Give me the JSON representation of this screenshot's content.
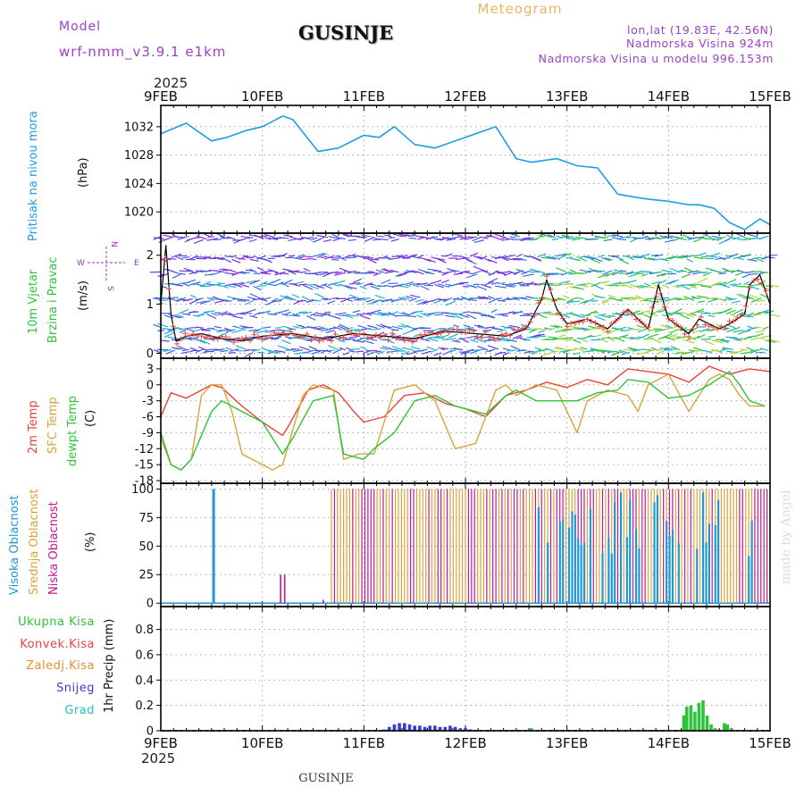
{
  "header": {
    "model_label": "Model",
    "model_name": "wrf-nmm_v3.9.1 e1km",
    "title": "GUSINJE",
    "meteogram": "Meteogram",
    "lonlat": "lon,lat (19.83E, 42.56N)",
    "elevation": "Nadmorska Visina 924m",
    "model_elevation": "Nadmorska Visina u modelu 996.153m",
    "year": "2025",
    "footer_title": "GUSINJE",
    "watermark": "made by Angel"
  },
  "colors": {
    "pressure": "#1f9de0",
    "temp2m": "#e8433a",
    "sfc": "#d9a33c",
    "dewpt": "#2dc43a",
    "high_cloud": "#2196d3",
    "mid_cloud": "#d9a33c",
    "low_cloud": "#c0188f",
    "total": "#2dc43a",
    "conv": "#e8433a",
    "frozen": "#f08a30",
    "snow": "#3a3ad8",
    "grad": "#20c0c0",
    "wind_label": "#2dc43a",
    "wind_dir_label": "#9c38c8",
    "header_purple": "#a040c8",
    "header_gold": "#e6b860"
  },
  "axis": {
    "days": [
      "9FEB",
      "10FEB",
      "11FEB",
      "12FEB",
      "13FEB",
      "14FEB",
      "15FEB"
    ]
  },
  "chart_data": [
    {
      "type": "line",
      "name": "pressure",
      "ylabel": "(hPa)",
      "side_labels": [
        "Pritisak na nivou mora"
      ],
      "ylim": [
        1017,
        1035
      ],
      "yticks": [
        1020,
        1024,
        1028,
        1032
      ],
      "grid": true,
      "series": [
        {
          "key": "pressure",
          "x": [
            0,
            0.25,
            0.35,
            0.5,
            0.65,
            0.85,
            1.0,
            1.2,
            1.3,
            1.55,
            1.75,
            2.0,
            2.15,
            2.3,
            2.5,
            2.7,
            2.9,
            3.1,
            3.3,
            3.5,
            3.65,
            3.9,
            4.1,
            4.3,
            4.5,
            4.7,
            4.8,
            5.0,
            5.2,
            5.3,
            5.45,
            5.6,
            5.75,
            5.9,
            6.0
          ],
          "y": [
            1031,
            1032.5,
            1031.5,
            1030,
            1030.5,
            1031.5,
            1032,
            1033.5,
            1033,
            1028.5,
            1029,
            1030.8,
            1030.5,
            1032,
            1029.5,
            1029,
            1030,
            1031,
            1032,
            1027.5,
            1027,
            1027.5,
            1026.5,
            1026.2,
            1022.5,
            1022,
            1021.8,
            1021.5,
            1021,
            1021,
            1020.5,
            1018.5,
            1017.5,
            1019,
            1018.2
          ]
        }
      ]
    },
    {
      "type": "line",
      "name": "wind",
      "ylabel": "(m/s)",
      "side_labels": [
        "10m Vjetar",
        "Brzina i Pravac"
      ],
      "compass": {
        "n": "N",
        "s": "S",
        "w": "W",
        "e": "E"
      },
      "ylim": [
        -0.1,
        2.45
      ],
      "yticks": [
        0,
        1,
        2
      ],
      "grid": true,
      "series": [
        {
          "key": "speed",
          "x": [
            0,
            0.05,
            0.1,
            0.15,
            0.25,
            0.4,
            0.6,
            0.8,
            1.0,
            1.3,
            1.6,
            1.9,
            2.2,
            2.5,
            2.8,
            3.1,
            3.4,
            3.6,
            3.75,
            3.8,
            3.9,
            4.0,
            4.2,
            4.4,
            4.6,
            4.8,
            4.9,
            5.0,
            5.2,
            5.3,
            5.4,
            5.5,
            5.6,
            5.75,
            5.8,
            5.9,
            6.0
          ],
          "y": [
            1.0,
            2.2,
            0.8,
            0.25,
            0.35,
            0.4,
            0.3,
            0.25,
            0.35,
            0.4,
            0.3,
            0.4,
            0.35,
            0.3,
            0.45,
            0.4,
            0.35,
            0.5,
            1.1,
            1.5,
            0.9,
            0.6,
            0.7,
            0.5,
            0.9,
            0.5,
            1.4,
            0.7,
            0.4,
            0.7,
            0.6,
            0.5,
            0.6,
            0.8,
            1.4,
            1.6,
            1.0
          ]
        }
      ]
    },
    {
      "type": "line",
      "name": "temperature",
      "ylabel": "(C)",
      "side_labels": [
        "2m Temp",
        "SFC Temp",
        "dewpt Temp"
      ],
      "ylim": [
        -18.5,
        5
      ],
      "yticks": [
        3,
        0,
        -3,
        -6,
        -9,
        -12,
        -15,
        -18
      ],
      "grid": true,
      "series": [
        {
          "key": "temp2m",
          "x": [
            0,
            0.1,
            0.25,
            0.4,
            0.5,
            0.6,
            0.8,
            1.0,
            1.2,
            1.25,
            1.45,
            1.6,
            1.75,
            1.9,
            2.0,
            2.2,
            2.4,
            2.6,
            2.8,
            3.0,
            3.2,
            3.4,
            3.6,
            3.8,
            4.0,
            4.2,
            4.4,
            4.6,
            4.8,
            5.0,
            5.2,
            5.4,
            5.6,
            5.8,
            6.0
          ],
          "y": [
            -6,
            -1.5,
            -2.5,
            -1,
            0,
            -0.5,
            -4,
            -7,
            -9.5,
            -8,
            -1,
            0,
            -1.5,
            -5,
            -7,
            -6,
            -2,
            -1.5,
            -3.5,
            -4.5,
            -6,
            -2,
            -1,
            0.5,
            -0.5,
            1,
            0,
            3,
            2.5,
            2,
            0.5,
            3.5,
            2,
            3,
            2.5
          ]
        },
        {
          "key": "sfc",
          "x": [
            0,
            0.1,
            0.2,
            0.3,
            0.4,
            0.5,
            0.6,
            0.7,
            0.8,
            1.0,
            1.1,
            1.2,
            1.4,
            1.5,
            1.7,
            1.8,
            1.95,
            2.1,
            2.3,
            2.5,
            2.7,
            2.9,
            3.1,
            3.2,
            3.3,
            3.4,
            3.5,
            3.7,
            3.9,
            4.1,
            4.2,
            4.4,
            4.6,
            4.7,
            4.8,
            5.0,
            5.2,
            5.4,
            5.5,
            5.6,
            5.7,
            5.8,
            5.95
          ],
          "y": [
            -10,
            -15,
            -16,
            -14,
            -2,
            0,
            0,
            -5,
            -13,
            -15,
            -16,
            -15,
            -2,
            0,
            -1,
            -14,
            -13,
            -13,
            -1,
            0,
            -3,
            -12,
            -11,
            -6,
            -1,
            0,
            -2,
            0,
            -1,
            -9,
            -3,
            -1,
            -2,
            -5,
            0,
            2,
            -5,
            1,
            2,
            1,
            -2,
            -4,
            -4
          ]
        },
        {
          "key": "dewpt",
          "x": [
            0,
            0.1,
            0.2,
            0.3,
            0.5,
            0.6,
            0.8,
            1.0,
            1.1,
            1.2,
            1.3,
            1.5,
            1.7,
            1.8,
            2.0,
            2.1,
            2.3,
            2.5,
            2.7,
            2.9,
            3.1,
            3.2,
            3.4,
            3.5,
            3.7,
            3.9,
            4.1,
            4.3,
            4.5,
            4.6,
            4.8,
            5.0,
            5.2,
            5.4,
            5.6,
            5.7,
            5.8,
            5.95
          ],
          "y": [
            -9,
            -15,
            -16,
            -14,
            -5,
            -3,
            -5,
            -7,
            -10,
            -13,
            -10,
            -3,
            -2,
            -13,
            -14,
            -12,
            -9,
            -3,
            -2,
            -4,
            -5,
            -5.5,
            -2,
            -1,
            -3,
            -3,
            -3,
            -1.5,
            -1,
            1,
            0.5,
            -2.5,
            -2,
            0,
            2.5,
            0,
            -3,
            -4
          ]
        }
      ]
    },
    {
      "type": "bar",
      "name": "cloud",
      "ylabel": "(%)",
      "side_labels": [
        "Visoka Oblacnost",
        "Srednja Oblacnost",
        "Niska Oblacnost"
      ],
      "ylim": [
        -3,
        105
      ],
      "yticks": [
        0,
        25,
        50,
        75,
        100
      ],
      "grid": true
    },
    {
      "type": "bar",
      "name": "precip",
      "ylabel": "1hr Precip (mm)",
      "side_labels": [
        "Ukupna Kisa",
        "Konvek.Kisa",
        "Zaledj.Kisa",
        "Snijeg",
        "Grad"
      ],
      "ylim": [
        0,
        0.98
      ],
      "yticks": [
        0,
        0.2,
        0.4,
        0.6,
        0.8
      ],
      "grid": true,
      "series": [
        {
          "key": "snow",
          "x": [
            2.2,
            2.25,
            2.3,
            2.35,
            2.4,
            2.45,
            2.5,
            2.55,
            2.6,
            2.65,
            2.7,
            2.75,
            2.8,
            2.85,
            2.9,
            2.95,
            3.0,
            3.05
          ],
          "y": [
            0.01,
            0.03,
            0.05,
            0.06,
            0.06,
            0.05,
            0.04,
            0.04,
            0.03,
            0.04,
            0.04,
            0.03,
            0.03,
            0.04,
            0.03,
            0.02,
            0.02,
            0.01
          ]
        },
        {
          "key": "total",
          "x": [
            3.65,
            5.15,
            5.18,
            5.22,
            5.26,
            5.3,
            5.34,
            5.38,
            5.42,
            5.46,
            5.55,
            5.58,
            5.62
          ],
          "y": [
            0.02,
            0.12,
            0.19,
            0.2,
            0.15,
            0.22,
            0.24,
            0.12,
            0.05,
            0.02,
            0.06,
            0.05,
            0.02
          ]
        }
      ]
    }
  ]
}
